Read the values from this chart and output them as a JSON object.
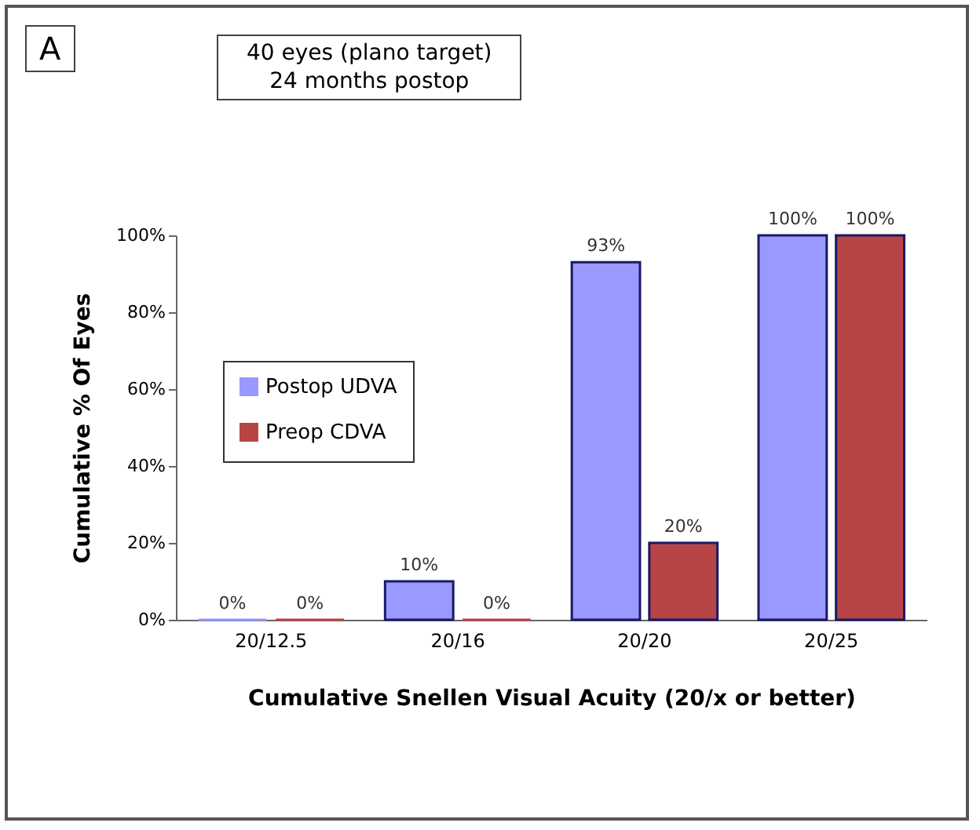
{
  "chart_data": {
    "type": "bar",
    "ylabel": "Cumulative % Of Eyes",
    "xlabel": "Cumulative Snellen Visual Acuity (20/x or better)",
    "annotations": [
      "A",
      "40 eyes (plano target)\n24 months postop"
    ],
    "categories": [
      "20/12.5",
      "20/16",
      "20/20",
      "20/25"
    ],
    "series": [
      {
        "name": "Postop UDVA",
        "color": "#9999ff",
        "values": [
          0,
          10,
          93,
          100
        ],
        "value_labels": [
          "0%",
          "10%",
          "93%",
          "100%"
        ]
      },
      {
        "name": "Preop CDVA",
        "color": "#b84545",
        "values": [
          0,
          0,
          20,
          100
        ],
        "value_labels": [
          "0%",
          "0%",
          "20%",
          "100%"
        ]
      }
    ],
    "ylim": [
      0,
      100
    ],
    "yticks": [
      {
        "value": 0,
        "label": "0%"
      },
      {
        "value": 20,
        "label": "20%"
      },
      {
        "value": 40,
        "label": "40%"
      },
      {
        "value": 60,
        "label": "60%"
      },
      {
        "value": 80,
        "label": "80%"
      },
      {
        "value": 100,
        "label": "100%"
      }
    ],
    "grid": false,
    "legend": "left"
  }
}
